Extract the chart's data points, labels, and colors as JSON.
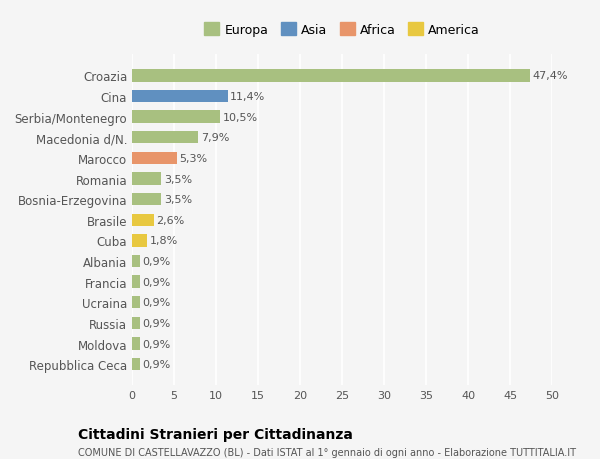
{
  "categories": [
    "Repubblica Ceca",
    "Moldova",
    "Russia",
    "Ucraina",
    "Francia",
    "Albania",
    "Cuba",
    "Brasile",
    "Bosnia-Erzegovina",
    "Romania",
    "Marocco",
    "Macedonia d/N.",
    "Serbia/Montenegro",
    "Cina",
    "Croazia"
  ],
  "values": [
    0.9,
    0.9,
    0.9,
    0.9,
    0.9,
    0.9,
    1.8,
    2.6,
    3.5,
    3.5,
    5.3,
    7.9,
    10.5,
    11.4,
    47.4
  ],
  "labels": [
    "0,9%",
    "0,9%",
    "0,9%",
    "0,9%",
    "0,9%",
    "0,9%",
    "1,8%",
    "2,6%",
    "3,5%",
    "3,5%",
    "5,3%",
    "7,9%",
    "10,5%",
    "11,4%",
    "47,4%"
  ],
  "colors": [
    "#a8c080",
    "#a8c080",
    "#a8c080",
    "#a8c080",
    "#a8c080",
    "#a8c080",
    "#e8c840",
    "#e8c840",
    "#a8c080",
    "#a8c080",
    "#e8956a",
    "#a8c080",
    "#a8c080",
    "#6090c0",
    "#a8c080"
  ],
  "legend": {
    "Europa": "#a8c080",
    "Asia": "#6090c0",
    "Africa": "#e8956a",
    "America": "#e8c840"
  },
  "xlim": [
    0,
    50
  ],
  "xticks": [
    0,
    5,
    10,
    15,
    20,
    25,
    30,
    35,
    40,
    45,
    50
  ],
  "title": "Cittadini Stranieri per Cittadinanza",
  "subtitle": "COMUNE DI CASTELLAVAZZO (BL) - Dati ISTAT al 1° gennaio di ogni anno - Elaborazione TUTTITALIA.IT",
  "background_color": "#f5f5f5",
  "bar_height": 0.6,
  "grid_color": "#ffffff",
  "text_color": "#555555",
  "title_color": "#000000"
}
